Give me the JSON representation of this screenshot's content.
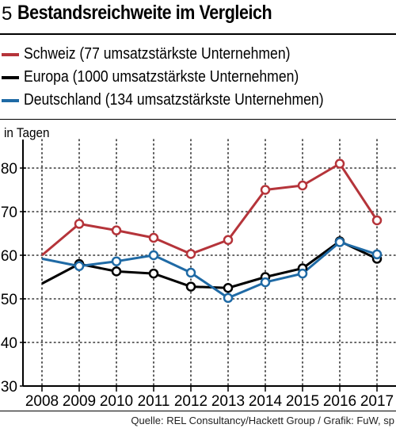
{
  "header": {
    "figure_number": "5",
    "title": "Bestandsreichweite im Vergleich"
  },
  "legend": [
    {
      "label": "Schweiz (77 umsatzstärkste Unternehmen)",
      "color": "#b5343a"
    },
    {
      "label": "Europa (1000 umsatzstärkste Unternehmen)",
      "color": "#000000"
    },
    {
      "label": "Deutschland (134 umsatzstärkste Unternehmen)",
      "color": "#1f6aa5"
    }
  ],
  "unit_label": "in Tagen",
  "source": "Quelle: REL Consultancy/Hackett Group / Grafik: FuW, sp",
  "chart_data": {
    "type": "line",
    "x": [
      "2008",
      "2009",
      "2010",
      "2011",
      "2012",
      "2013",
      "2014",
      "2015",
      "2016",
      "2017"
    ],
    "yticks": [
      "30",
      "40",
      "50",
      "60",
      "70",
      "80"
    ],
    "ylim": [
      30,
      85
    ],
    "grid": true,
    "series": [
      {
        "name": "Schweiz (77 umsatzstärkste Unternehmen)",
        "color": "#b5343a",
        "values": [
          60,
          67.2,
          65.7,
          64,
          60.3,
          63.5,
          75,
          76,
          81,
          68
        ],
        "markers": [
          false,
          true,
          true,
          true,
          true,
          true,
          true,
          true,
          true,
          true
        ]
      },
      {
        "name": "Europa (1000 umsatzstärkste Unternehmen)",
        "color": "#000000",
        "values": [
          53.5,
          58,
          56.3,
          55.8,
          52.8,
          52.5,
          55,
          57,
          63.2,
          59.2
        ],
        "markers": [
          false,
          true,
          true,
          true,
          true,
          true,
          true,
          true,
          true,
          true
        ]
      },
      {
        "name": "Deutschland (134 umsatzstärkste Unternehmen)",
        "color": "#1f6aa5",
        "values": [
          59.2,
          57.5,
          58.6,
          60,
          56,
          50.2,
          53.8,
          55.8,
          63,
          60.2
        ],
        "markers": [
          false,
          true,
          true,
          true,
          true,
          true,
          true,
          true,
          true,
          true
        ]
      }
    ]
  }
}
